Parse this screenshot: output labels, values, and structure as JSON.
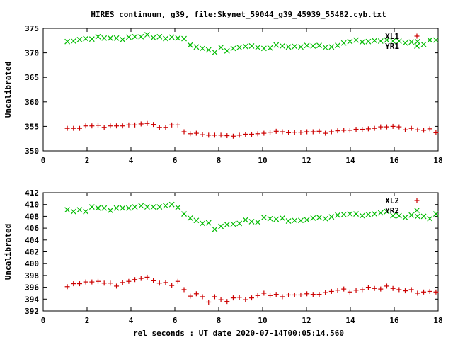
{
  "title": "HIRES continuum, g39, file:Skynet_59044_g39_45939_55482.cyb.txt",
  "xlabel": "rel seconds : UT date 2020-07-14T00:05:14.560",
  "colors": {
    "red": "#cc0000",
    "green": "#00bb00"
  },
  "chart_data": [
    {
      "type": "scatter",
      "ylabel": "Uncalibrated",
      "xlim": [
        0,
        18
      ],
      "ylim": [
        350,
        375
      ],
      "xticks": [
        0,
        2,
        4,
        6,
        8,
        10,
        12,
        14,
        16,
        18
      ],
      "yticks": [
        350,
        355,
        360,
        365,
        370,
        375
      ],
      "legend_position": "top-right",
      "series": [
        {
          "name": "XL1",
          "color": "#cc0000",
          "marker": "plus",
          "x": [
            1.1,
            1.38,
            1.66,
            1.94,
            2.22,
            2.5,
            2.78,
            3.06,
            3.34,
            3.62,
            3.9,
            4.18,
            4.46,
            4.74,
            5.02,
            5.3,
            5.58,
            5.86,
            6.14,
            6.42,
            6.7,
            6.98,
            7.26,
            7.54,
            7.82,
            8.1,
            8.38,
            8.66,
            8.94,
            9.22,
            9.5,
            9.78,
            10.06,
            10.34,
            10.62,
            10.9,
            11.18,
            11.46,
            11.74,
            12.02,
            12.3,
            12.58,
            12.86,
            13.14,
            13.42,
            13.7,
            13.98,
            14.26,
            14.54,
            14.82,
            15.1,
            15.38,
            15.66,
            15.94,
            16.22,
            16.5,
            16.78,
            17.06,
            17.34,
            17.62,
            17.9
          ],
          "y": [
            354.6,
            354.6,
            354.6,
            355.1,
            355.1,
            355.2,
            354.8,
            355.1,
            355.1,
            355.1,
            355.3,
            355.3,
            355.5,
            355.6,
            355.4,
            354.8,
            354.8,
            355.3,
            355.3,
            353.9,
            353.5,
            353.6,
            353.3,
            353.2,
            353.2,
            353.2,
            353.1,
            353.0,
            353.2,
            353.4,
            353.4,
            353.5,
            353.6,
            353.8,
            354.0,
            353.9,
            353.7,
            353.8,
            353.8,
            353.9,
            353.9,
            354.0,
            353.6,
            353.9,
            354.1,
            354.2,
            354.2,
            354.4,
            354.4,
            354.5,
            354.6,
            354.9,
            354.9,
            355.0,
            354.9,
            354.3,
            354.6,
            354.3,
            354.2,
            354.5,
            353.7
          ]
        },
        {
          "name": "YR1",
          "color": "#00bb00",
          "marker": "cross",
          "x": [
            1.1,
            1.38,
            1.66,
            1.94,
            2.22,
            2.5,
            2.78,
            3.06,
            3.34,
            3.62,
            3.9,
            4.18,
            4.46,
            4.74,
            5.02,
            5.3,
            5.58,
            5.86,
            6.14,
            6.42,
            6.7,
            6.98,
            7.26,
            7.54,
            7.82,
            8.1,
            8.38,
            8.66,
            8.94,
            9.22,
            9.5,
            9.78,
            10.06,
            10.34,
            10.62,
            10.9,
            11.18,
            11.46,
            11.74,
            12.02,
            12.3,
            12.58,
            12.86,
            13.14,
            13.42,
            13.7,
            13.98,
            14.26,
            14.54,
            14.82,
            15.1,
            15.38,
            15.66,
            15.94,
            16.22,
            16.5,
            16.78,
            17.06,
            17.34,
            17.62,
            17.9
          ],
          "y": [
            372.3,
            372.4,
            372.7,
            372.9,
            372.8,
            373.3,
            373.0,
            373.0,
            373.0,
            372.7,
            373.2,
            373.3,
            373.3,
            373.7,
            373.1,
            373.3,
            372.9,
            373.2,
            373.0,
            372.9,
            371.6,
            371.2,
            370.9,
            370.6,
            370.1,
            371.1,
            370.4,
            370.9,
            371.1,
            371.3,
            371.4,
            371.1,
            370.9,
            371.0,
            371.6,
            371.4,
            371.2,
            371.3,
            371.2,
            371.5,
            371.4,
            371.5,
            371.1,
            371.2,
            371.5,
            372.0,
            372.3,
            372.6,
            372.2,
            372.3,
            372.5,
            372.4,
            372.6,
            372.4,
            372.4,
            372.0,
            372.2,
            372.3,
            371.7,
            372.6,
            372.6
          ]
        }
      ]
    },
    {
      "type": "scatter",
      "ylabel": "Uncalibrated",
      "xlim": [
        0,
        18
      ],
      "ylim": [
        392,
        412
      ],
      "xticks": [
        0,
        2,
        4,
        6,
        8,
        10,
        12,
        14,
        16,
        18
      ],
      "yticks": [
        392,
        394,
        396,
        398,
        400,
        402,
        404,
        406,
        408,
        410,
        412
      ],
      "legend_position": "top-right",
      "series": [
        {
          "name": "XL2",
          "color": "#cc0000",
          "marker": "plus",
          "x": [
            1.1,
            1.38,
            1.66,
            1.94,
            2.22,
            2.5,
            2.78,
            3.06,
            3.34,
            3.62,
            3.9,
            4.18,
            4.46,
            4.74,
            5.02,
            5.3,
            5.58,
            5.86,
            6.14,
            6.42,
            6.7,
            6.98,
            7.26,
            7.54,
            7.82,
            8.1,
            8.38,
            8.66,
            8.94,
            9.22,
            9.5,
            9.78,
            10.06,
            10.34,
            10.62,
            10.9,
            11.18,
            11.46,
            11.74,
            12.02,
            12.3,
            12.58,
            12.86,
            13.14,
            13.42,
            13.7,
            13.98,
            14.26,
            14.54,
            14.82,
            15.1,
            15.38,
            15.66,
            15.94,
            16.22,
            16.5,
            16.78,
            17.06,
            17.34,
            17.62,
            17.9
          ],
          "y": [
            396.1,
            396.6,
            396.6,
            396.9,
            396.9,
            397.0,
            396.7,
            396.7,
            396.2,
            396.8,
            397.0,
            397.3,
            397.5,
            397.7,
            397.1,
            396.7,
            396.8,
            396.3,
            397.0,
            395.6,
            394.5,
            394.9,
            394.4,
            393.5,
            394.4,
            393.9,
            393.6,
            394.2,
            394.3,
            393.9,
            394.2,
            394.6,
            395.0,
            394.6,
            394.8,
            394.4,
            394.7,
            394.7,
            394.7,
            394.9,
            394.8,
            394.8,
            395.1,
            395.3,
            395.5,
            395.7,
            395.2,
            395.5,
            395.6,
            396.0,
            395.8,
            395.7,
            396.2,
            395.8,
            395.6,
            395.4,
            395.6,
            395.0,
            395.2,
            395.3,
            395.2
          ]
        },
        {
          "name": "YR2",
          "color": "#00bb00",
          "marker": "cross",
          "x": [
            1.1,
            1.38,
            1.66,
            1.94,
            2.22,
            2.5,
            2.78,
            3.06,
            3.34,
            3.62,
            3.9,
            4.18,
            4.46,
            4.74,
            5.02,
            5.3,
            5.58,
            5.86,
            6.14,
            6.42,
            6.7,
            6.98,
            7.26,
            7.54,
            7.82,
            8.1,
            8.38,
            8.66,
            8.94,
            9.22,
            9.5,
            9.78,
            10.06,
            10.34,
            10.62,
            10.9,
            11.18,
            11.46,
            11.74,
            12.02,
            12.3,
            12.58,
            12.86,
            13.14,
            13.42,
            13.7,
            13.98,
            14.26,
            14.54,
            14.82,
            15.1,
            15.38,
            15.66,
            15.94,
            16.22,
            16.5,
            16.78,
            17.06,
            17.34,
            17.62,
            17.9
          ],
          "y": [
            409.1,
            408.8,
            409.1,
            408.8,
            409.6,
            409.4,
            409.4,
            409.0,
            409.4,
            409.4,
            409.4,
            409.6,
            409.8,
            409.6,
            409.6,
            409.6,
            409.8,
            410.0,
            409.5,
            408.4,
            407.7,
            407.3,
            406.8,
            406.9,
            405.8,
            406.3,
            406.6,
            406.7,
            406.8,
            407.4,
            407.1,
            407.0,
            407.8,
            407.6,
            407.5,
            407.7,
            407.2,
            407.3,
            407.3,
            407.4,
            407.7,
            407.8,
            407.6,
            407.9,
            408.2,
            408.3,
            408.4,
            408.4,
            408.1,
            408.3,
            408.4,
            408.6,
            408.8,
            408.1,
            408.1,
            407.8,
            408.2,
            408.0,
            408.0,
            407.6,
            408.4
          ]
        }
      ]
    }
  ]
}
